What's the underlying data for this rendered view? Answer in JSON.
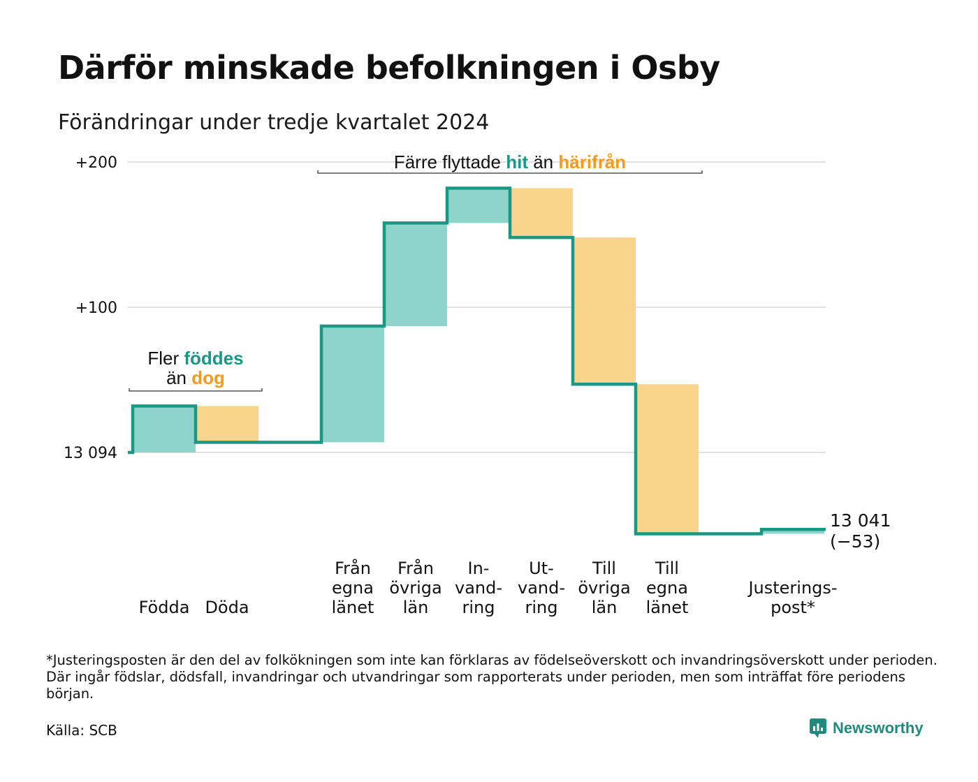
{
  "title": "Därför minskade befolkningen i Osby",
  "subtitle": "Förändringar under tredje kvartalet 2024",
  "footnote": "*Justeringsposten är den del av folkökningen som inte kan förklaras av födelseöverskott och invandringsöverskott under perioden. Där ingår födslar, dödsfall, invandringar och utvandringar som rapporterats under perioden, men som inträffat före periodens början.",
  "source": "Källa: SCB",
  "brand": "Newsworthy",
  "colors": {
    "increase": "#8dd4cb",
    "decrease": "#f9d48b",
    "line": "#1a9785",
    "accent_orange": "#f49b1f",
    "grid": "#e2e2e2"
  },
  "chart_data": {
    "type": "bar",
    "subtype": "waterfall",
    "start_value": 13094,
    "start_label": "13 094",
    "end_value": 13041,
    "end_label": "13 041",
    "end_change_label": "(−53)",
    "y_ticks": [
      {
        "value": 200,
        "label": "+200"
      },
      {
        "value": 100,
        "label": "+100"
      },
      {
        "value": 0,
        "label": "13 094"
      }
    ],
    "ylim": [
      -55,
      200
    ],
    "grid": true,
    "steps": [
      {
        "label_lines": [
          "Födda"
        ],
        "change": 32,
        "kind": "increase"
      },
      {
        "label_lines": [
          "Döda"
        ],
        "change": -25,
        "kind": "decrease"
      },
      {
        "label_lines": [],
        "change": 0,
        "kind": "none"
      },
      {
        "label_lines": [
          "Från",
          "egna",
          "länet"
        ],
        "change": 80,
        "kind": "increase"
      },
      {
        "label_lines": [
          "Från",
          "övriga",
          "län"
        ],
        "change": 71,
        "kind": "increase"
      },
      {
        "label_lines": [
          "In-",
          "vand-",
          "ring"
        ],
        "change": 24,
        "kind": "increase"
      },
      {
        "label_lines": [
          "Ut-",
          "vand-",
          "ring"
        ],
        "change": -34,
        "kind": "decrease"
      },
      {
        "label_lines": [
          "Till",
          "övriga",
          "län"
        ],
        "change": -101,
        "kind": "decrease"
      },
      {
        "label_lines": [
          "Till",
          "egna",
          "länet"
        ],
        "change": -103,
        "kind": "decrease"
      },
      {
        "label_lines": [],
        "change": 0,
        "kind": "none"
      },
      {
        "label_lines": [
          "Justerings-",
          "post*"
        ],
        "change": 3,
        "kind": "increase"
      }
    ],
    "annotations": [
      {
        "name": "births-deaths",
        "from_step": 0,
        "to_step": 1,
        "lines": [
          [
            {
              "text": "Fler ",
              "style": "plain"
            },
            {
              "text": "föddes",
              "style": "increase"
            }
          ],
          [
            {
              "text": "än ",
              "style": "plain"
            },
            {
              "text": "dog",
              "style": "decrease"
            }
          ]
        ]
      },
      {
        "name": "migration",
        "from_step": 3,
        "to_step": 8,
        "lines": [
          [
            {
              "text": "Färre flyttade ",
              "style": "plain"
            },
            {
              "text": "hit",
              "style": "increase"
            },
            {
              "text": " än ",
              "style": "plain"
            },
            {
              "text": "härifrån",
              "style": "decrease"
            }
          ]
        ]
      }
    ]
  }
}
